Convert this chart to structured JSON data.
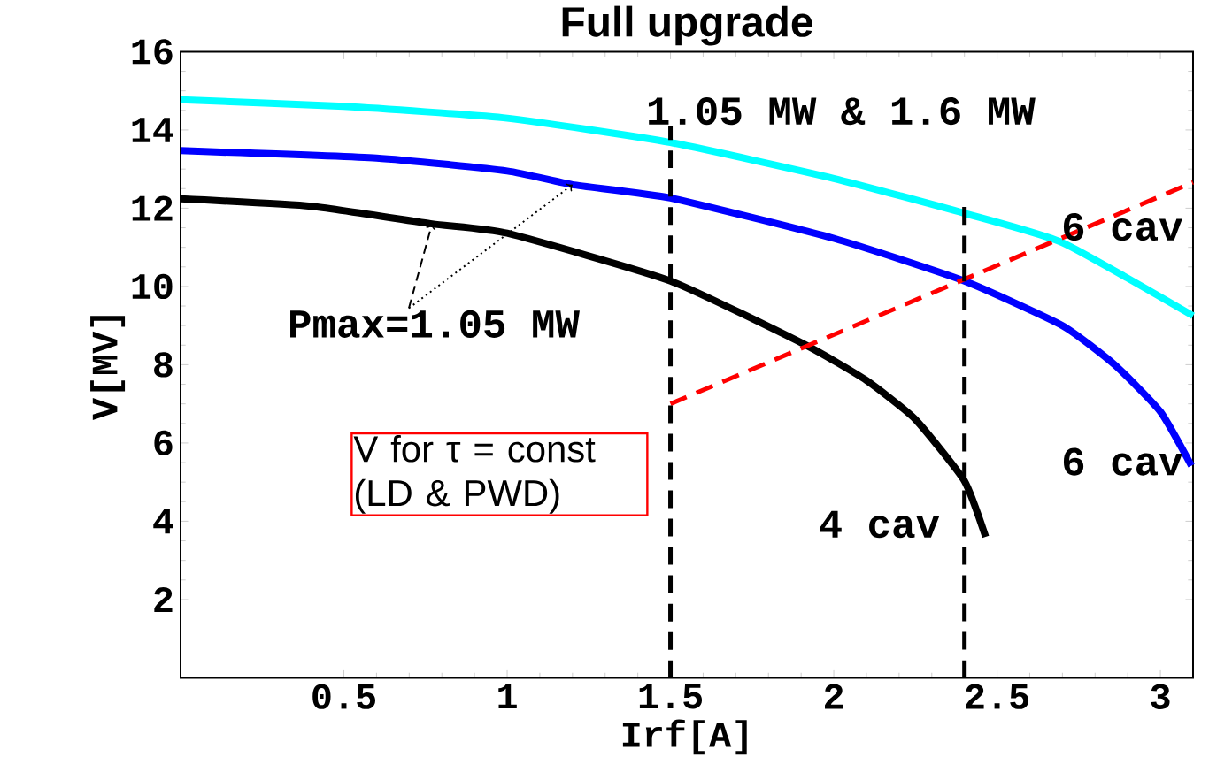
{
  "chart_data": {
    "type": "line",
    "title": "Full upgrade",
    "xlabel": "Irf[A]",
    "ylabel": "V[MV]",
    "xlim": [
      0,
      3.1
    ],
    "ylim": [
      0,
      16
    ],
    "xticks": [
      0.5,
      1,
      1.5,
      2,
      2.5,
      3
    ],
    "yticks": [
      2,
      4,
      6,
      8,
      10,
      12,
      14,
      16
    ],
    "grid": false,
    "series": [
      {
        "color": "#00ffff",
        "line_style": "solid",
        "x": [
          0,
          0.5,
          1.0,
          1.5,
          2.0,
          2.4,
          2.7,
          3.1
        ],
        "values": [
          14.77,
          14.6,
          14.3,
          13.68,
          12.76,
          11.87,
          11.12,
          9.25
        ]
      },
      {
        "color": "#0000ff",
        "line_style": "solid",
        "x": [
          0,
          0.6,
          1.0,
          1.2,
          1.5,
          2.0,
          2.4,
          2.7,
          2.86,
          3.0,
          3.095
        ],
        "values": [
          13.47,
          13.28,
          12.95,
          12.6,
          12.26,
          11.23,
          10.14,
          9.0,
          8.0,
          6.8,
          5.42
        ]
      },
      {
        "color": "#000000",
        "line_style": "solid",
        "x": [
          0,
          0.4,
          0.77,
          1.0,
          1.5,
          1.91,
          2.1,
          2.25,
          2.4,
          2.465
        ],
        "values": [
          12.24,
          12.05,
          11.6,
          11.36,
          10.14,
          8.52,
          7.6,
          6.6,
          5.03,
          3.6
        ]
      },
      {
        "color": "#ff0000",
        "line_style": "dashed",
        "x": [
          1.5,
          3.1
        ],
        "values": [
          7.0,
          12.66
        ]
      },
      {
        "color": "#000000",
        "line_style": "dashed",
        "x": [
          1.5,
          1.5
        ],
        "values": [
          0,
          14.1
        ]
      },
      {
        "color": "#000000",
        "line_style": "dashed",
        "x": [
          2.4,
          2.4
        ],
        "values": [
          0,
          12.1
        ]
      }
    ],
    "annotations": [
      "1.05 MW & 1.6 MW",
      "6 cav",
      "6 cav",
      "4 cav",
      "V for τ = const (LD & PWD)",
      {
        "text": "Pmax=1.05 MW",
        "x": 0.77,
        "y": 11.6
      }
    ]
  }
}
